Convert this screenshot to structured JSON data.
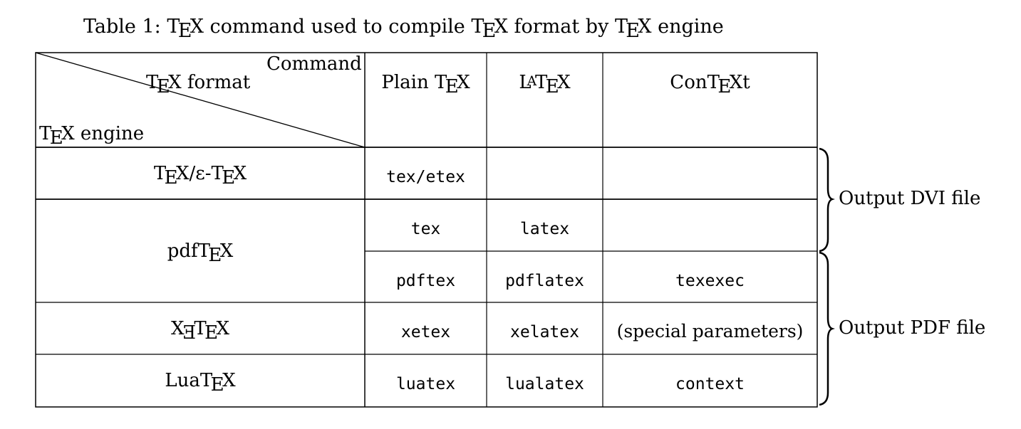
{
  "caption": {
    "prefix": "Table 1: ",
    "tex": "TEX",
    "mid1": " command used to compile ",
    "mid2": " format by ",
    "suffix": " engine"
  },
  "header": {
    "corner_top": "Command",
    "corner_mid": " format",
    "corner_bottom": " engine",
    "columns": [
      "Plain",
      "LATEX",
      "ConTEXt"
    ]
  },
  "rows": {
    "tex_etex": {
      "engine_sep": "/ε-",
      "plain": "tex/etex"
    },
    "pdftex_dvi": {
      "engine_prefix": "pdf",
      "plain": "tex",
      "latex": "latex"
    },
    "pdftex_pdf": {
      "plain": "pdftex",
      "latex": "pdflatex",
      "context": "texexec"
    },
    "xetex": {
      "plain": "xetex",
      "latex": "xelatex",
      "context": "(special parameters)"
    },
    "luatex": {
      "engine_prefix": "Lua",
      "plain": "luatex",
      "latex": "lualatex",
      "context": "context"
    }
  },
  "braces": {
    "dvi": "Output DVI file",
    "pdf": "Output PDF file"
  }
}
